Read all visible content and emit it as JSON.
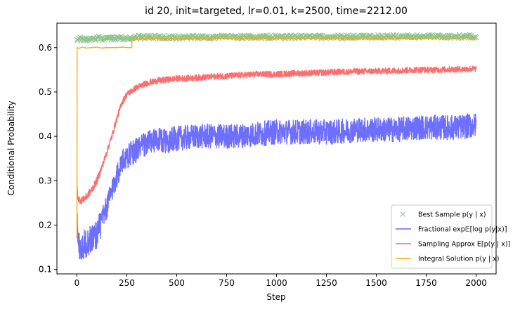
{
  "chart_data": {
    "type": "line",
    "title": "id 20, init=targeted, lr=0.01, k=2500, time=2212.00",
    "xlabel": "Step",
    "ylabel": "Conditional Probability",
    "xlim": [
      -100,
      2100
    ],
    "ylim": [
      0.09,
      0.655
    ],
    "xticks": [
      0,
      250,
      500,
      750,
      1000,
      1250,
      1500,
      1750,
      2000
    ],
    "yticks": [
      0.1,
      0.2,
      0.3,
      0.4,
      0.5,
      0.6
    ],
    "ytick_labels": [
      "0.1",
      "0.2",
      "0.3",
      "0.4",
      "0.5",
      "0.6"
    ],
    "grid": false,
    "legend_position": "lower-right",
    "series": [
      {
        "name": "Best Sample p(y | x)",
        "style": "x-markers",
        "color": "#008000",
        "points": [
          [
            0,
            0.62
          ],
          [
            50,
            0.618
          ],
          [
            100,
            0.621
          ],
          [
            150,
            0.619
          ],
          [
            200,
            0.622
          ],
          [
            250,
            0.621
          ],
          [
            275,
            0.623
          ],
          [
            300,
            0.624
          ],
          [
            500,
            0.623
          ],
          [
            750,
            0.624
          ],
          [
            1000,
            0.624
          ],
          [
            1250,
            0.624
          ],
          [
            1500,
            0.625
          ],
          [
            1750,
            0.625
          ],
          [
            2000,
            0.625
          ]
        ]
      },
      {
        "name": "Fractional exp𝔼[log p(y|x)]",
        "style": "line",
        "color": "#6666ff",
        "points": [
          [
            0,
            0.23
          ],
          [
            5,
            0.16
          ],
          [
            20,
            0.15
          ],
          [
            50,
            0.16
          ],
          [
            75,
            0.17
          ],
          [
            100,
            0.18
          ],
          [
            125,
            0.21
          ],
          [
            150,
            0.24
          ],
          [
            175,
            0.28
          ],
          [
            200,
            0.31
          ],
          [
            225,
            0.34
          ],
          [
            250,
            0.355
          ],
          [
            300,
            0.37
          ],
          [
            350,
            0.385
          ],
          [
            400,
            0.39
          ],
          [
            450,
            0.39
          ],
          [
            500,
            0.395
          ],
          [
            600,
            0.4
          ],
          [
            700,
            0.4
          ],
          [
            800,
            0.4
          ],
          [
            900,
            0.405
          ],
          [
            1000,
            0.41
          ],
          [
            1100,
            0.41
          ],
          [
            1200,
            0.41
          ],
          [
            1300,
            0.41
          ],
          [
            1400,
            0.415
          ],
          [
            1500,
            0.415
          ],
          [
            1600,
            0.415
          ],
          [
            1700,
            0.42
          ],
          [
            1800,
            0.42
          ],
          [
            1900,
            0.42
          ],
          [
            2000,
            0.425
          ]
        ]
      },
      {
        "name": "Sampling Approx E[p(y | x)]",
        "style": "line",
        "color": "#ff6666",
        "points": [
          [
            0,
            0.29
          ],
          [
            5,
            0.26
          ],
          [
            25,
            0.255
          ],
          [
            50,
            0.265
          ],
          [
            75,
            0.28
          ],
          [
            100,
            0.3
          ],
          [
            125,
            0.33
          ],
          [
            150,
            0.365
          ],
          [
            175,
            0.4
          ],
          [
            200,
            0.44
          ],
          [
            225,
            0.475
          ],
          [
            250,
            0.495
          ],
          [
            300,
            0.51
          ],
          [
            350,
            0.52
          ],
          [
            400,
            0.525
          ],
          [
            500,
            0.53
          ],
          [
            600,
            0.532
          ],
          [
            700,
            0.535
          ],
          [
            800,
            0.537
          ],
          [
            900,
            0.54
          ],
          [
            1000,
            0.54
          ],
          [
            1100,
            0.542
          ],
          [
            1200,
            0.543
          ],
          [
            1300,
            0.545
          ],
          [
            1400,
            0.546
          ],
          [
            1500,
            0.547
          ],
          [
            1600,
            0.548
          ],
          [
            1700,
            0.55
          ],
          [
            1800,
            0.55
          ],
          [
            1900,
            0.551
          ],
          [
            2000,
            0.552
          ]
        ]
      },
      {
        "name": "Integral Solution p(y | x)",
        "style": "line",
        "color": "#ffa500",
        "points": [
          [
            0,
            0.17
          ],
          [
            0.5,
            0.17
          ],
          [
            1,
            0.6
          ],
          [
            10,
            0.598
          ],
          [
            25,
            0.601
          ],
          [
            50,
            0.599
          ],
          [
            75,
            0.6
          ],
          [
            100,
            0.601
          ],
          [
            125,
            0.599
          ],
          [
            150,
            0.6
          ],
          [
            175,
            0.6
          ],
          [
            200,
            0.6
          ],
          [
            225,
            0.601
          ],
          [
            260,
            0.6
          ],
          [
            275,
            0.6
          ],
          [
            276,
            0.619
          ],
          [
            300,
            0.62
          ],
          [
            500,
            0.62
          ],
          [
            1000,
            0.621
          ],
          [
            1500,
            0.621
          ],
          [
            2000,
            0.622
          ]
        ]
      }
    ]
  }
}
